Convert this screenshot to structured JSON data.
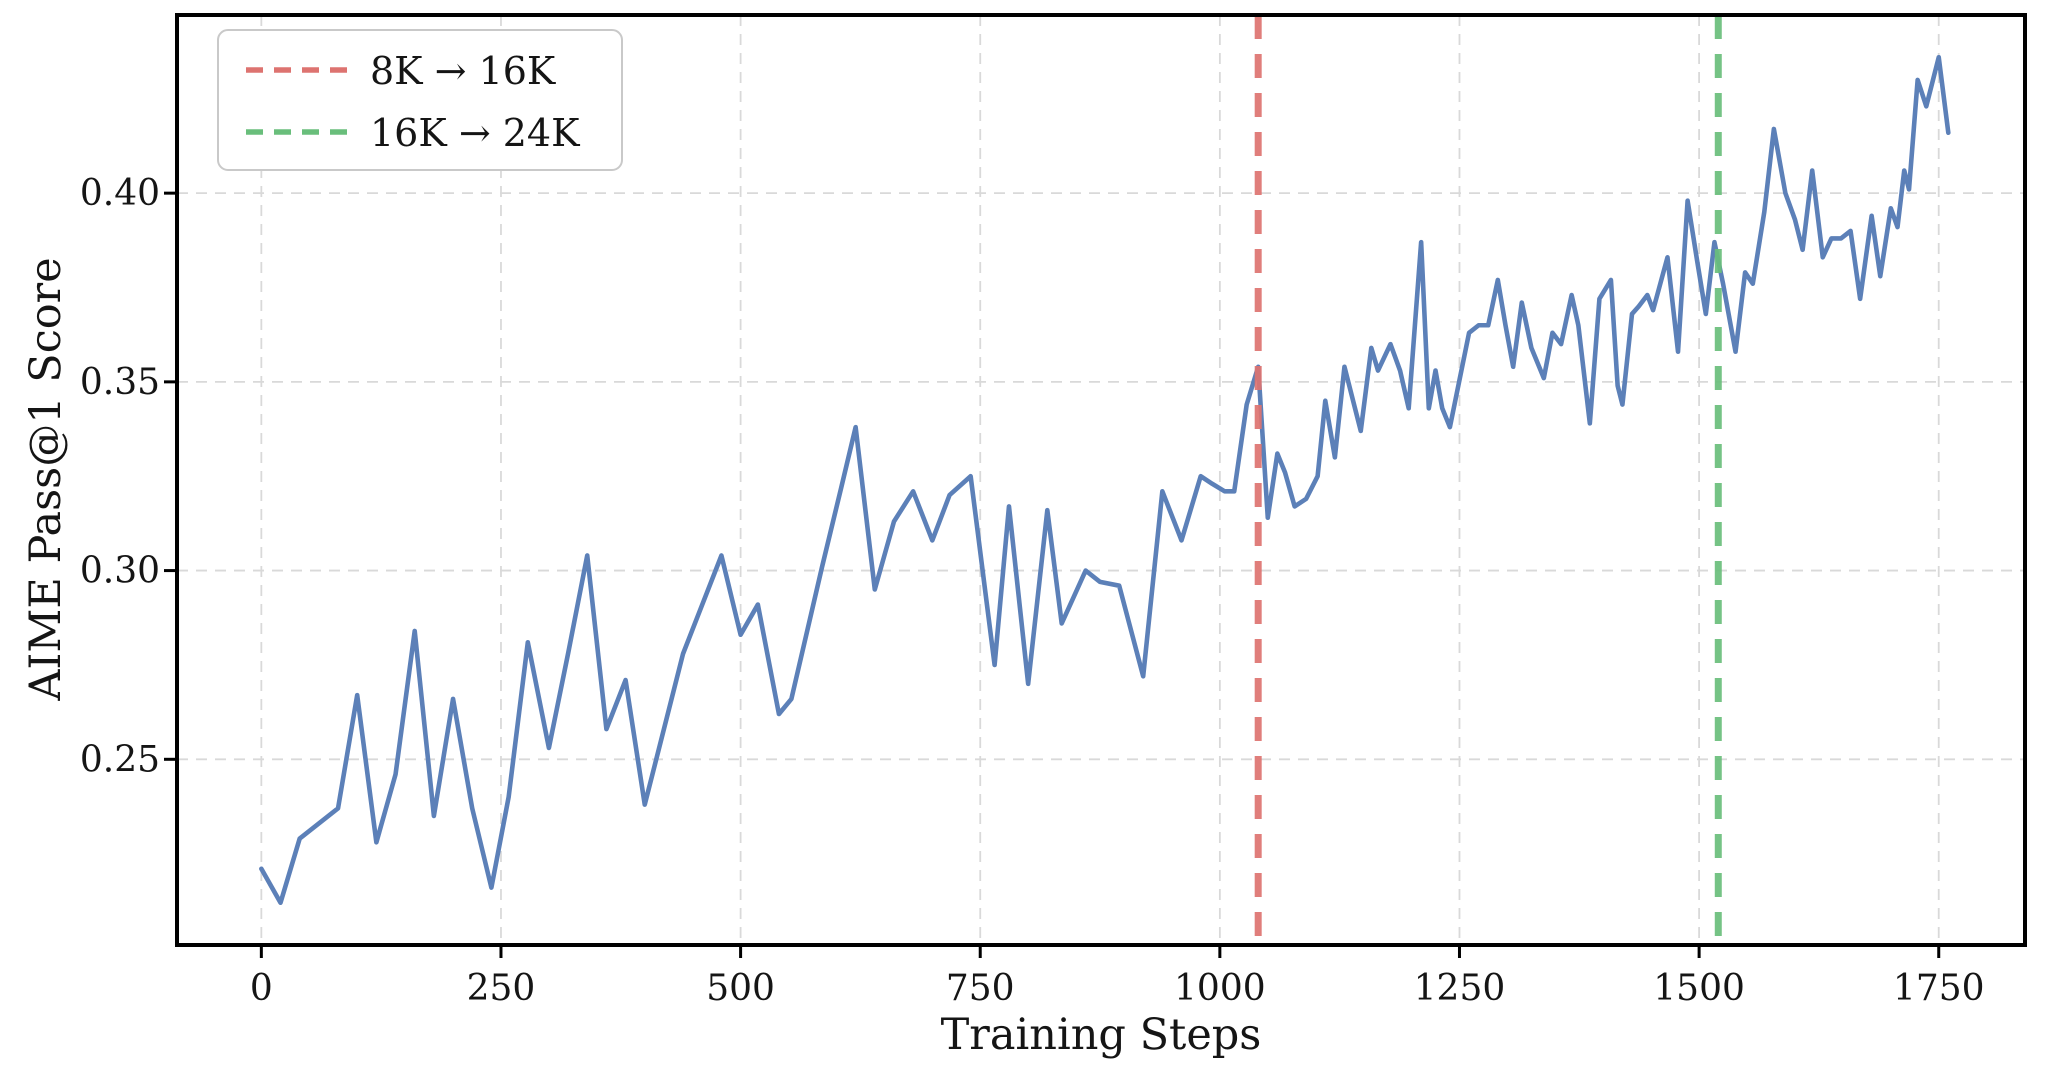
{
  "chart_data": {
    "type": "line",
    "title": "",
    "xlabel": "Training Steps",
    "ylabel": "AIME Pass@1 Score",
    "xlim": [
      -88,
      1840
    ],
    "ylim": [
      0.2008,
      0.4472
    ],
    "grid": true,
    "legend_position": "upper left",
    "xticks": {
      "values": [
        0,
        250,
        500,
        750,
        1000,
        1250,
        1500,
        1750
      ],
      "labels": [
        "0",
        "250",
        "500",
        "750",
        "1000",
        "1250",
        "1500",
        "1750"
      ]
    },
    "yticks": {
      "values": [
        0.25,
        0.3,
        0.35,
        0.4
      ],
      "labels": [
        "0.25",
        "0.30",
        "0.35",
        "0.40"
      ]
    },
    "colors": {
      "series": "#5c80b8",
      "grid": "#d9d9d9",
      "spine": "#000000",
      "text": "#151515"
    },
    "series": [
      {
        "name": "AIME Pass@1 Score",
        "color": "#5c80b8",
        "x": [
          0,
          20,
          40,
          60,
          80,
          100,
          120,
          140,
          160,
          180,
          200,
          220,
          240,
          258,
          278,
          300,
          320,
          340,
          360,
          380,
          400,
          420,
          440,
          460,
          480,
          500,
          518,
          540,
          553,
          585,
          605,
          620,
          640,
          660,
          680,
          700,
          718,
          740,
          765,
          780,
          800,
          820,
          835,
          860,
          875,
          895,
          920,
          940,
          960,
          980,
          992,
          1005,
          1015,
          1028,
          1040,
          1050,
          1060,
          1068,
          1078,
          1090,
          1102,
          1110,
          1120,
          1130,
          1147,
          1158,
          1165,
          1178,
          1188,
          1197,
          1210,
          1218,
          1225,
          1232,
          1240,
          1260,
          1270,
          1280,
          1290,
          1298,
          1306,
          1315,
          1325,
          1338,
          1347,
          1356,
          1367,
          1374,
          1386,
          1396,
          1408,
          1415,
          1420,
          1430,
          1437,
          1446,
          1452,
          1467,
          1478,
          1488,
          1498,
          1507,
          1516,
          1525,
          1538,
          1548,
          1556,
          1568,
          1578,
          1590,
          1600,
          1608,
          1618,
          1629,
          1638,
          1648,
          1658,
          1668,
          1680,
          1689,
          1700,
          1707,
          1714,
          1719,
          1728,
          1737,
          1750,
          1760
        ],
        "y": [
          0.221,
          0.212,
          0.229,
          0.233,
          0.237,
          0.267,
          0.228,
          0.246,
          0.284,
          0.235,
          0.266,
          0.237,
          0.216,
          0.24,
          0.281,
          0.253,
          0.278,
          0.304,
          0.258,
          0.271,
          0.238,
          0.258,
          0.278,
          0.291,
          0.304,
          0.283,
          0.291,
          0.262,
          0.266,
          0.301,
          0.322,
          0.338,
          0.295,
          0.313,
          0.321,
          0.308,
          0.32,
          0.325,
          0.275,
          0.317,
          0.27,
          0.316,
          0.286,
          0.3,
          0.297,
          0.296,
          0.272,
          0.321,
          0.308,
          0.325,
          0.323,
          0.321,
          0.321,
          0.344,
          0.354,
          0.314,
          0.331,
          0.326,
          0.317,
          0.319,
          0.325,
          0.345,
          0.33,
          0.354,
          0.337,
          0.359,
          0.353,
          0.36,
          0.353,
          0.343,
          0.387,
          0.343,
          0.353,
          0.343,
          0.338,
          0.363,
          0.365,
          0.365,
          0.377,
          0.365,
          0.354,
          0.371,
          0.359,
          0.351,
          0.363,
          0.36,
          0.373,
          0.365,
          0.339,
          0.372,
          0.377,
          0.349,
          0.344,
          0.368,
          0.37,
          0.373,
          0.369,
          0.383,
          0.358,
          0.398,
          0.382,
          0.368,
          0.387,
          0.376,
          0.358,
          0.379,
          0.376,
          0.395,
          0.417,
          0.4,
          0.393,
          0.385,
          0.406,
          0.383,
          0.388,
          0.388,
          0.39,
          0.372,
          0.394,
          0.378,
          0.396,
          0.391,
          0.406,
          0.401,
          0.43,
          0.423,
          0.436,
          0.416
        ]
      }
    ],
    "vlines": [
      {
        "x": 1040,
        "label": "8K → 16K",
        "color": "#dd7370",
        "style": "dashed"
      },
      {
        "x": 1520,
        "label": "16K → 24K",
        "color": "#69be7b",
        "style": "dashed"
      }
    ]
  }
}
